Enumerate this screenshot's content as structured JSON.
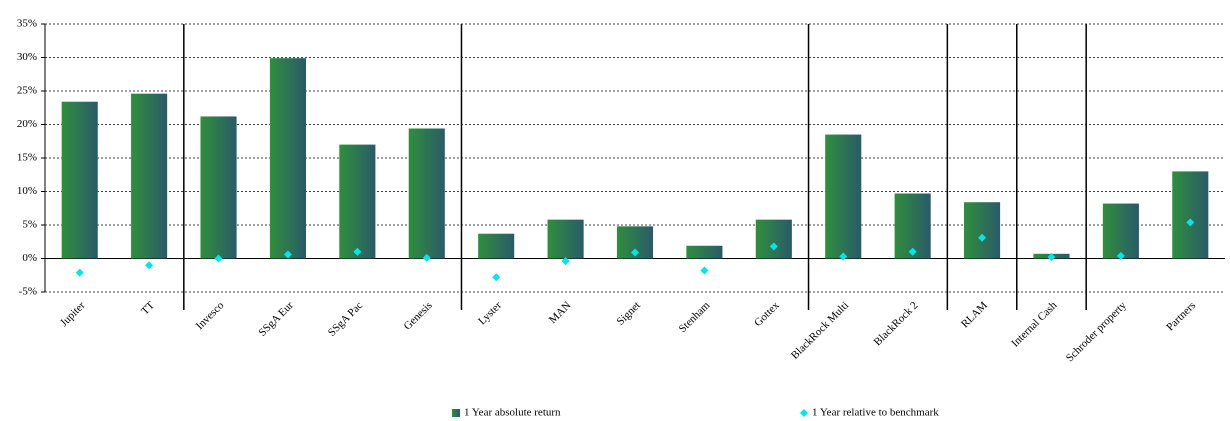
{
  "chart_data": {
    "type": "bar",
    "categories": [
      "Jupiter",
      "TT",
      "Invesco",
      "SSgA Eur",
      "SSgA Pac",
      "Genesis",
      "Lyster",
      "MAN",
      "Signet",
      "Stenham",
      "Gottex",
      "BlackRock Multi",
      "BlackRock 2",
      "RLAM",
      "Internal Cash",
      "Schroder property",
      "Partners"
    ],
    "series": [
      {
        "name": "1 Year absolute return",
        "color": "#2f8f3c",
        "values": [
          23.4,
          24.6,
          21.2,
          29.9,
          17.0,
          19.4,
          3.7,
          5.8,
          4.8,
          1.9,
          5.8,
          18.5,
          9.7,
          8.4,
          0.7,
          8.2,
          13.0
        ]
      },
      {
        "name": "1 Year relative to benchmark",
        "color": "#00e6ee",
        "values": [
          -2.1,
          -1.0,
          0.0,
          0.6,
          1.0,
          0.1,
          -2.8,
          -0.4,
          0.9,
          -1.8,
          1.8,
          0.3,
          1.0,
          3.1,
          0.2,
          0.4,
          5.4
        ]
      }
    ],
    "ylim": [
      -5,
      35
    ],
    "yticks": [
      {
        "value": -5,
        "label": "-5%"
      },
      {
        "value": 0,
        "label": "0%"
      },
      {
        "value": 5,
        "label": "5%"
      },
      {
        "value": 10,
        "label": "10%"
      },
      {
        "value": 15,
        "label": "15%"
      },
      {
        "value": 20,
        "label": "20%"
      },
      {
        "value": 25,
        "label": "25%"
      },
      {
        "value": 30,
        "label": "30%"
      },
      {
        "value": 35,
        "label": "35%"
      }
    ],
    "grid": true
  }
}
